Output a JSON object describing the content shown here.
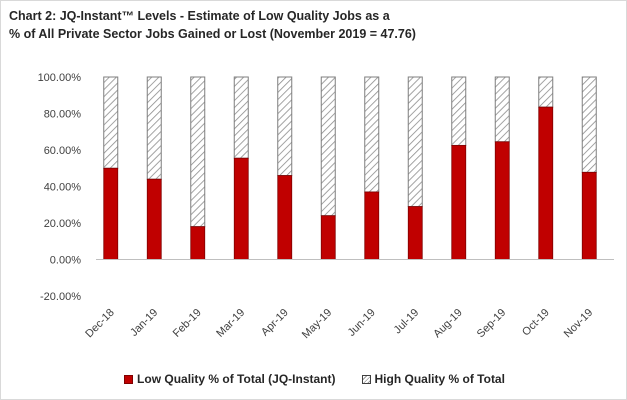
{
  "chart_data": {
    "type": "bar",
    "stacked": true,
    "title": "Chart 2: JQ-Instant™ Levels - Estimate of Low Quality Jobs as a % of All Private Sector Jobs Gained or Lost (November 2019 = 47.76)",
    "title_lines": [
      "Chart 2: JQ-Instant™ Levels - Estimate of Low Quality Jobs as a",
      "% of All Private Sector Jobs Gained or Lost (November 2019 = 47.76)"
    ],
    "xlabel": "",
    "ylabel": "",
    "categories": [
      "Dec-18",
      "Jan-19",
      "Feb-19",
      "Mar-19",
      "Apr-19",
      "May-19",
      "Jun-19",
      "Jul-19",
      "Aug-19",
      "Sep-19",
      "Oct-19",
      "Nov-19"
    ],
    "series": [
      {
        "name": "Low Quality % of Total (JQ-Instant)",
        "color": "#c00000",
        "values": [
          50,
          44,
          18,
          55.5,
          46,
          24,
          37,
          29,
          62.5,
          64.5,
          83.5,
          47.76
        ]
      },
      {
        "name": "High Quality % of Total",
        "color": "#ffffff",
        "pattern": "diagonal-hatch",
        "values": [
          50,
          56,
          82,
          44.5,
          54,
          76,
          63,
          71,
          37.5,
          35.5,
          16.5,
          52.24
        ]
      }
    ],
    "yticks": [
      "-20.00%",
      "0.00%",
      "20.00%",
      "40.00%",
      "60.00%",
      "80.00%",
      "100.00%"
    ],
    "ylim": [
      -20,
      100
    ],
    "grid": false,
    "legend_position": "bottom"
  }
}
